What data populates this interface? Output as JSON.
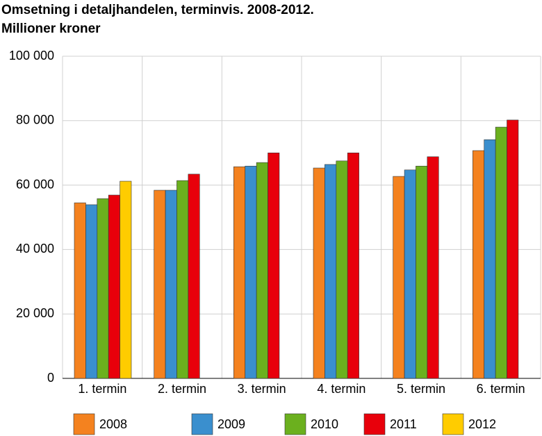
{
  "chart_data": {
    "type": "bar",
    "title": "Omsetning i detaljhandelen, terminvis.  2008-2012.",
    "subtitle": "Millioner kroner",
    "categories": [
      "1. termin",
      "2. termin",
      "3. termin",
      "4. termin",
      "5. termin",
      "6. termin"
    ],
    "series": [
      {
        "name": "2008",
        "color": "#f4821f",
        "values": [
          54500,
          58400,
          65700,
          65300,
          62700,
          70700
        ]
      },
      {
        "name": "2009",
        "color": "#3a8fce",
        "values": [
          53900,
          58400,
          65900,
          66400,
          64700,
          74100
        ]
      },
      {
        "name": "2010",
        "color": "#6bb01e",
        "values": [
          55800,
          61400,
          67000,
          67500,
          65900,
          78000
        ]
      },
      {
        "name": "2011",
        "color": "#e8000b",
        "values": [
          56900,
          63400,
          70000,
          70000,
          68800,
          80200
        ]
      },
      {
        "name": "2012",
        "color": "#ffcc00",
        "values": [
          61200,
          null,
          null,
          null,
          null,
          null
        ]
      }
    ],
    "ylim": [
      0,
      100000
    ],
    "yticks": [
      0,
      {
        "value": 20000,
        "label": "20 000"
      },
      {
        "value": 40000,
        "label": "40 000"
      },
      {
        "value": 60000,
        "label": "60 000"
      },
      {
        "value": 80000,
        "label": "80 000"
      },
      {
        "value": 100000,
        "label": "100 000"
      }
    ],
    "grid": true
  }
}
